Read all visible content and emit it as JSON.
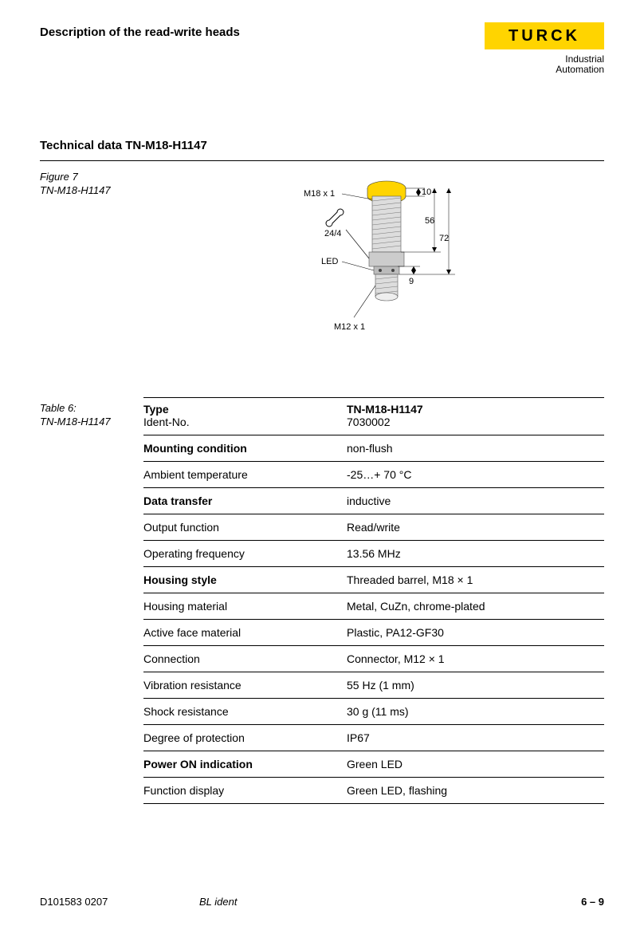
{
  "header": {
    "title": "Description of the read-write heads",
    "logo_text": "TURCK",
    "logo_sub1": "Industrial",
    "logo_sub2": "Automation"
  },
  "section": {
    "title": "Technical data TN-M18-H1147",
    "tab": "6"
  },
  "figure": {
    "caption_line1": "Figure 7",
    "caption_line2": "TN-M18-H1147",
    "labels": {
      "thread_top": "M18 x 1",
      "wrench": "24/4",
      "led": "LED",
      "thread_bottom": "M12 x 1",
      "dim_10": "10",
      "dim_56": "56",
      "dim_72": "72",
      "dim_9": "9"
    }
  },
  "table": {
    "caption_line1": "Table 6:",
    "caption_line2": "TN-M18-H1147",
    "rows": [
      {
        "label": "Type",
        "sublabel": "Ident-No.",
        "value": "TN-M18-H1147",
        "subvalue": "7030002",
        "bold": true,
        "type_row": true
      },
      {
        "label": "Mounting condition",
        "value": "non-flush",
        "bold": true
      },
      {
        "label": "Ambient temperature",
        "value": "-25…+ 70 °C"
      },
      {
        "label": "Data transfer",
        "value": "inductive",
        "bold": true
      },
      {
        "label": "Output function",
        "value": "Read/write"
      },
      {
        "label": "Operating frequency",
        "value": "13.56 MHz"
      },
      {
        "label": "Housing style",
        "value": "Threaded barrel, M18 × 1",
        "bold": true
      },
      {
        "label": "Housing material",
        "value": "Metal, CuZn, chrome-plated"
      },
      {
        "label": "Active face material",
        "value": "Plastic, PA12-GF30"
      },
      {
        "label": "Connection",
        "value": "Connector, M12 × 1"
      },
      {
        "label": "Vibration resistance",
        "value": "55 Hz (1 mm)"
      },
      {
        "label": "Shock resistance",
        "value": "30 g (11 ms)"
      },
      {
        "label": "Degree of protection",
        "value": "IP67"
      },
      {
        "label": "Power ON indication",
        "value": "Green LED",
        "bold": true
      },
      {
        "label": "Function display",
        "value": "Green LED, flashing"
      }
    ]
  },
  "footer": {
    "left": "D101583  0207",
    "center": "BL ident",
    "right": "6 – 9"
  },
  "colors": {
    "brand_yellow": "#ffd400",
    "text": "#000000",
    "rule": "#000000"
  }
}
